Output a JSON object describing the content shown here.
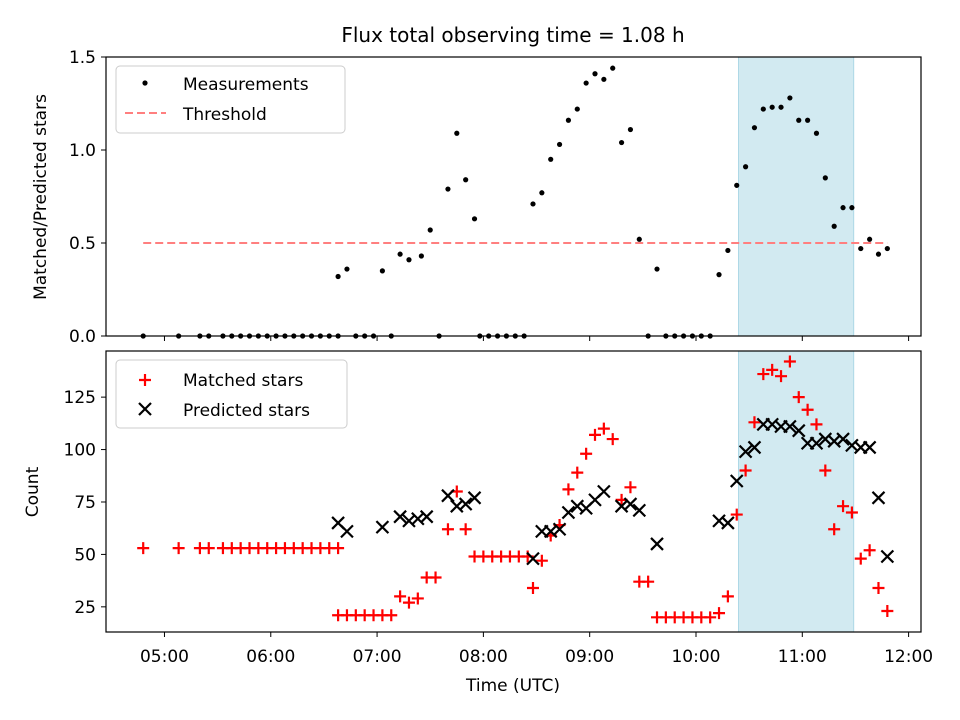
{
  "chart_data": [
    {
      "type": "scatter",
      "title": "Flux total observing time = 1.08 h",
      "xlabel": "",
      "ylabel": "Matched/Predicted stars",
      "ylim": [
        0,
        1.5
      ],
      "xlim": [
        "04:27",
        "12:07"
      ],
      "yticks": [
        {
          "v": 0,
          "label": "0.0"
        },
        {
          "v": 0.5,
          "label": "0.5"
        },
        {
          "v": 1.0,
          "label": "1.0"
        },
        {
          "v": 1.5,
          "label": "1.5"
        }
      ],
      "highlight_span": [
        "10:24",
        "11:29"
      ],
      "highlight_color": "#add8e6",
      "legend_position": "top-left",
      "series": [
        {
          "name": "Measurements",
          "marker": "dot",
          "color": "#000000",
          "points": [
            [
              "04:48",
              0
            ],
            [
              "05:08",
              0
            ],
            [
              "05:20",
              0
            ],
            [
              "05:25",
              0
            ],
            [
              "05:33",
              0
            ],
            [
              "05:38",
              0
            ],
            [
              "05:43",
              0
            ],
            [
              "05:48",
              0
            ],
            [
              "05:53",
              0
            ],
            [
              "05:58",
              0
            ],
            [
              "06:03",
              0
            ],
            [
              "06:08",
              0
            ],
            [
              "06:13",
              0
            ],
            [
              "06:18",
              0
            ],
            [
              "06:23",
              0
            ],
            [
              "06:28",
              0
            ],
            [
              "06:33",
              0
            ],
            [
              "06:38",
              0
            ],
            [
              "06:38",
              0.32
            ],
            [
              "06:43",
              0.36
            ],
            [
              "06:48",
              0
            ],
            [
              "06:53",
              0
            ],
            [
              "06:58",
              0
            ],
            [
              "07:03",
              0.35
            ],
            [
              "07:08",
              0
            ],
            [
              "07:13",
              0.44
            ],
            [
              "07:18",
              0.41
            ],
            [
              "07:25",
              0.43
            ],
            [
              "07:30",
              0.57
            ],
            [
              "07:35",
              0
            ],
            [
              "07:40",
              0.79
            ],
            [
              "07:45",
              1.09
            ],
            [
              "07:50",
              0.84
            ],
            [
              "07:55",
              0.63
            ],
            [
              "07:58",
              0
            ],
            [
              "08:03",
              0
            ],
            [
              "08:08",
              0
            ],
            [
              "08:13",
              0
            ],
            [
              "08:18",
              0
            ],
            [
              "08:23",
              0
            ],
            [
              "08:28",
              0.71
            ],
            [
              "08:33",
              0.77
            ],
            [
              "08:38",
              0.95
            ],
            [
              "08:43",
              1.03
            ],
            [
              "08:48",
              1.16
            ],
            [
              "08:53",
              1.22
            ],
            [
              "08:58",
              1.36
            ],
            [
              "09:03",
              1.41
            ],
            [
              "09:08",
              1.38
            ],
            [
              "09:13",
              1.44
            ],
            [
              "09:18",
              1.04
            ],
            [
              "09:23",
              1.11
            ],
            [
              "09:28",
              0.52
            ],
            [
              "09:33",
              0
            ],
            [
              "09:38",
              0.36
            ],
            [
              "09:43",
              0
            ],
            [
              "09:48",
              0
            ],
            [
              "09:53",
              0
            ],
            [
              "09:58",
              0
            ],
            [
              "10:03",
              0
            ],
            [
              "10:08",
              0
            ],
            [
              "10:13",
              0.33
            ],
            [
              "10:18",
              0.46
            ],
            [
              "10:23",
              0.81
            ],
            [
              "10:28",
              0.91
            ],
            [
              "10:33",
              1.12
            ],
            [
              "10:38",
              1.22
            ],
            [
              "10:43",
              1.23
            ],
            [
              "10:48",
              1.23
            ],
            [
              "10:53",
              1.28
            ],
            [
              "10:58",
              1.16
            ],
            [
              "11:03",
              1.16
            ],
            [
              "11:08",
              1.09
            ],
            [
              "11:13",
              0.85
            ],
            [
              "11:18",
              0.59
            ],
            [
              "11:23",
              0.69
            ],
            [
              "11:28",
              0.69
            ],
            [
              "11:33",
              0.47
            ],
            [
              "11:38",
              0.52
            ],
            [
              "11:43",
              0.44
            ],
            [
              "11:48",
              0.47
            ]
          ]
        },
        {
          "name": "Threshold",
          "marker": "dashed-line",
          "color": "#ff7f7f",
          "points": [
            [
              "04:48",
              0.5
            ],
            [
              "11:48",
              0.5
            ]
          ]
        }
      ]
    },
    {
      "type": "scatter",
      "title": "",
      "xlabel": "Time (UTC)",
      "ylabel": "Count",
      "ylim": [
        13,
        147
      ],
      "xlim": [
        "04:27",
        "12:07"
      ],
      "yticks": [
        {
          "v": 25,
          "label": "25"
        },
        {
          "v": 50,
          "label": "50"
        },
        {
          "v": 75,
          "label": "75"
        },
        {
          "v": 100,
          "label": "100"
        },
        {
          "v": 125,
          "label": "125"
        }
      ],
      "xticks": [
        {
          "v": "05:00",
          "label": "05:00"
        },
        {
          "v": "06:00",
          "label": "06:00"
        },
        {
          "v": "07:00",
          "label": "07:00"
        },
        {
          "v": "08:00",
          "label": "08:00"
        },
        {
          "v": "09:00",
          "label": "09:00"
        },
        {
          "v": "10:00",
          "label": "10:00"
        },
        {
          "v": "11:00",
          "label": "11:00"
        },
        {
          "v": "12:00",
          "label": "12:00"
        }
      ],
      "highlight_span": [
        "10:24",
        "11:29"
      ],
      "highlight_color": "#add8e6",
      "legend_position": "top-left",
      "series": [
        {
          "name": "Matched stars",
          "marker": "plus",
          "color": "#ff0000",
          "points": [
            [
              "04:48",
              53
            ],
            [
              "05:08",
              53
            ],
            [
              "05:20",
              53
            ],
            [
              "05:25",
              53
            ],
            [
              "05:33",
              53
            ],
            [
              "05:38",
              53
            ],
            [
              "05:43",
              53
            ],
            [
              "05:48",
              53
            ],
            [
              "05:53",
              53
            ],
            [
              "05:58",
              53
            ],
            [
              "06:03",
              53
            ],
            [
              "06:08",
              53
            ],
            [
              "06:13",
              53
            ],
            [
              "06:18",
              53
            ],
            [
              "06:23",
              53
            ],
            [
              "06:28",
              53
            ],
            [
              "06:33",
              53
            ],
            [
              "06:38",
              53
            ],
            [
              "06:38",
              21
            ],
            [
              "06:43",
              21
            ],
            [
              "06:48",
              21
            ],
            [
              "06:53",
              21
            ],
            [
              "06:58",
              21
            ],
            [
              "07:03",
              21
            ],
            [
              "07:08",
              21
            ],
            [
              "07:13",
              30
            ],
            [
              "07:18",
              27
            ],
            [
              "07:23",
              29
            ],
            [
              "07:28",
              39
            ],
            [
              "07:33",
              39
            ],
            [
              "07:40",
              62
            ],
            [
              "07:45",
              80
            ],
            [
              "07:50",
              62
            ],
            [
              "07:55",
              49
            ],
            [
              "08:00",
              49
            ],
            [
              "08:05",
              49
            ],
            [
              "08:10",
              49
            ],
            [
              "08:15",
              49
            ],
            [
              "08:20",
              49
            ],
            [
              "08:25",
              49
            ],
            [
              "08:28",
              34
            ],
            [
              "08:33",
              47
            ],
            [
              "08:38",
              59
            ],
            [
              "08:43",
              64
            ],
            [
              "08:48",
              81
            ],
            [
              "08:53",
              89
            ],
            [
              "08:58",
              98
            ],
            [
              "09:03",
              107
            ],
            [
              "09:08",
              110
            ],
            [
              "09:13",
              105
            ],
            [
              "09:18",
              76
            ],
            [
              "09:23",
              82
            ],
            [
              "09:28",
              37
            ],
            [
              "09:33",
              37
            ],
            [
              "09:38",
              20
            ],
            [
              "09:43",
              20
            ],
            [
              "09:48",
              20
            ],
            [
              "09:53",
              20
            ],
            [
              "09:58",
              20
            ],
            [
              "10:03",
              20
            ],
            [
              "10:08",
              20
            ],
            [
              "10:13",
              22
            ],
            [
              "10:18",
              30
            ],
            [
              "10:23",
              69
            ],
            [
              "10:28",
              90
            ],
            [
              "10:33",
              113
            ],
            [
              "10:38",
              136
            ],
            [
              "10:43",
              138
            ],
            [
              "10:48",
              135
            ],
            [
              "10:53",
              142
            ],
            [
              "10:58",
              125
            ],
            [
              "11:03",
              119
            ],
            [
              "11:08",
              112
            ],
            [
              "11:13",
              90
            ],
            [
              "11:18",
              62
            ],
            [
              "11:23",
              73
            ],
            [
              "11:28",
              70
            ],
            [
              "11:33",
              48
            ],
            [
              "11:38",
              52
            ],
            [
              "11:43",
              34
            ],
            [
              "11:48",
              23
            ]
          ]
        },
        {
          "name": "Predicted stars",
          "marker": "x",
          "color": "#000000",
          "points": [
            [
              "06:38",
              65
            ],
            [
              "06:43",
              61
            ],
            [
              "07:03",
              63
            ],
            [
              "07:13",
              68
            ],
            [
              "07:18",
              66
            ],
            [
              "07:23",
              67
            ],
            [
              "07:28",
              68
            ],
            [
              "07:40",
              78
            ],
            [
              "07:45",
              73
            ],
            [
              "07:50",
              74
            ],
            [
              "07:55",
              77
            ],
            [
              "08:28",
              48
            ],
            [
              "08:33",
              61
            ],
            [
              "08:38",
              61
            ],
            [
              "08:43",
              62
            ],
            [
              "08:48",
              70
            ],
            [
              "08:53",
              73
            ],
            [
              "08:58",
              72
            ],
            [
              "09:03",
              76
            ],
            [
              "09:08",
              80
            ],
            [
              "09:18",
              73
            ],
            [
              "09:23",
              74
            ],
            [
              "09:28",
              71
            ],
            [
              "09:38",
              55
            ],
            [
              "10:13",
              66
            ],
            [
              "10:18",
              65
            ],
            [
              "10:23",
              85
            ],
            [
              "10:28",
              99
            ],
            [
              "10:33",
              101
            ],
            [
              "10:38",
              112
            ],
            [
              "10:43",
              112
            ],
            [
              "10:48",
              111
            ],
            [
              "10:53",
              111
            ],
            [
              "10:58",
              109
            ],
            [
              "11:03",
              103
            ],
            [
              "11:08",
              103
            ],
            [
              "11:13",
              105
            ],
            [
              "11:18",
              104
            ],
            [
              "11:23",
              105
            ],
            [
              "11:28",
              102
            ],
            [
              "11:33",
              101
            ],
            [
              "11:38",
              101
            ],
            [
              "11:43",
              77
            ],
            [
              "11:48",
              49
            ]
          ]
        }
      ]
    }
  ]
}
